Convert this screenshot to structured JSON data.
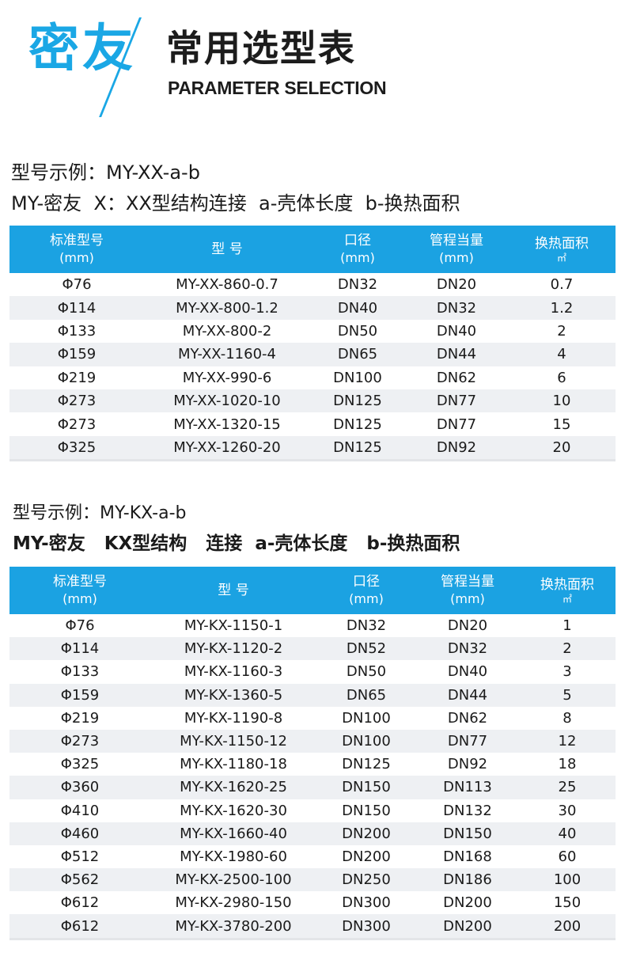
{
  "header": {
    "brand": "密友",
    "title_cn": "常用选型表",
    "title_en": "PARAMETER SELECTION"
  },
  "section1": {
    "caption_line1": "型号示例：MY-XX-a-b",
    "caption_line2": "MY-密友  X：XX型结构连接  a-壳体长度  b-换热面积",
    "columns": [
      {
        "label": "标准型号",
        "sub": "(mm)"
      },
      {
        "label": "型  号",
        "sub": ""
      },
      {
        "label": "口径",
        "sub": "(mm)"
      },
      {
        "label": "管程当量",
        "sub": "(mm)"
      },
      {
        "label": "换热面积",
        "unit": "㎡"
      }
    ],
    "rows": [
      [
        "Φ76",
        "MY-XX-860-0.7",
        "DN32",
        "DN20",
        "0.7"
      ],
      [
        "Φ114",
        "MY-XX-800-1.2",
        "DN40",
        "DN32",
        "1.2"
      ],
      [
        "Φ133",
        "MY-XX-800-2",
        "DN50",
        "DN40",
        "2"
      ],
      [
        "Φ159",
        "MY-XX-1160-4",
        "DN65",
        "DN44",
        "4"
      ],
      [
        "Φ219",
        "MY-XX-990-6",
        "DN100",
        "DN62",
        "6"
      ],
      [
        "Φ273",
        "MY-XX-1020-10",
        "DN125",
        "DN77",
        "10"
      ],
      [
        "Φ273",
        "MY-XX-1320-15",
        "DN125",
        "DN77",
        "15"
      ],
      [
        "Φ325",
        "MY-XX-1260-20",
        "DN125",
        "DN92",
        "20"
      ]
    ]
  },
  "section2": {
    "caption_line1": "型号示例：MY-KX-a-b",
    "caption_line2": "MY-密友   KX型结构   连接  a-壳体长度   b-换热面积",
    "columns": [
      {
        "label": "标准型号",
        "sub": "(mm)"
      },
      {
        "label": "型  号",
        "sub": ""
      },
      {
        "label": "口径",
        "sub": "(mm)"
      },
      {
        "label": "管程当量",
        "sub": "(mm)"
      },
      {
        "label": "换热面积",
        "unit": "㎡"
      }
    ],
    "rows": [
      [
        "Φ76",
        "MY-KX-1150-1",
        "DN32",
        "DN20",
        "1"
      ],
      [
        "Φ114",
        "MY-KX-1120-2",
        "DN52",
        "DN32",
        "2"
      ],
      [
        "Φ133",
        "MY-KX-1160-3",
        "DN50",
        "DN40",
        "3"
      ],
      [
        "Φ159",
        "MY-KX-1360-5",
        "DN65",
        "DN44",
        "5"
      ],
      [
        "Φ219",
        "MY-KX-1190-8",
        "DN100",
        "DN62",
        "8"
      ],
      [
        "Φ273",
        "MY-KX-1150-12",
        "DN100",
        "DN77",
        "12"
      ],
      [
        "Φ325",
        "MY-KX-1180-18",
        "DN125",
        "DN92",
        "18"
      ],
      [
        "Φ360",
        "MY-KX-1620-25",
        "DN150",
        "DN113",
        "25"
      ],
      [
        "Φ410",
        "MY-KX-1620-30",
        "DN150",
        "DN132",
        "30"
      ],
      [
        "Φ460",
        "MY-KX-1660-40",
        "DN200",
        "DN150",
        "40"
      ],
      [
        "Φ512",
        "MY-KX-1980-60",
        "DN200",
        "DN168",
        "60"
      ],
      [
        "Φ562",
        "MY-KX-2500-100",
        "DN250",
        "DN186",
        "100"
      ],
      [
        "Φ612",
        "MY-KX-2980-150",
        "DN300",
        "DN200",
        "150"
      ],
      [
        "Φ612",
        "MY-KX-3780-200",
        "DN300",
        "DN200",
        "200"
      ]
    ]
  },
  "colors": {
    "accent": "#1aa7e5",
    "header_bg": "#1ba2e2",
    "stripe": "#eef0f3"
  }
}
